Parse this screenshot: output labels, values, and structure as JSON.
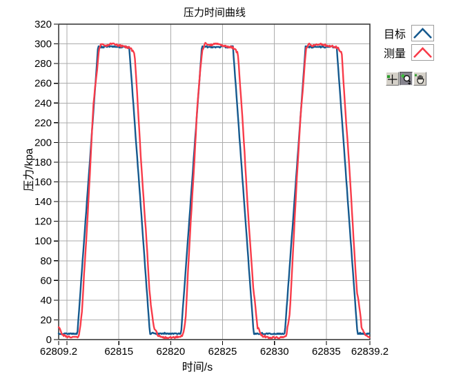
{
  "chart_data": {
    "type": "line",
    "title": "压力时间曲线",
    "xlabel": "时间/s",
    "ylabel": "压力/kpa",
    "xlim": [
      62809.2,
      62839.2
    ],
    "ylim": [
      0,
      320
    ],
    "grid": true,
    "grid_color": "#ABABAB",
    "border_color": "#3A3A3A",
    "background": "#FFFFFF",
    "x_ticks": [
      {
        "t": 62809.2,
        "label": "62809.2"
      },
      {
        "t": 62810,
        "label": ""
      },
      {
        "t": 62815,
        "label": "62815"
      },
      {
        "t": 62820,
        "label": "62820"
      },
      {
        "t": 62825,
        "label": "62825"
      },
      {
        "t": 62830,
        "label": "62830"
      },
      {
        "t": 62835,
        "label": "62835"
      },
      {
        "t": 62839.2,
        "label": "62839.2"
      }
    ],
    "grid_x": [
      62810,
      62815,
      62820,
      62825,
      62830,
      62835
    ],
    "y_ticks": {
      "min": 0,
      "max": 320,
      "step": 20
    },
    "legend_position": "top-right-outside",
    "sample_interval": 0.07,
    "series": [
      {
        "id": "target",
        "name": "目标",
        "color": "#15598E",
        "line_width": 2.4,
        "noise": 0.7,
        "ramp_wiggle": 0,
        "keypoints": [
          [
            62809.2,
            6
          ],
          [
            62811.0,
            6
          ],
          [
            62813.0,
            297
          ],
          [
            62816.0,
            297
          ],
          [
            62818.0,
            6
          ],
          [
            62821.0,
            6
          ],
          [
            62823.0,
            297
          ],
          [
            62826.0,
            297
          ],
          [
            62828.0,
            6
          ],
          [
            62831.0,
            6
          ],
          [
            62833.0,
            297
          ],
          [
            62836.0,
            297
          ],
          [
            62838.0,
            6
          ],
          [
            62839.2,
            6
          ]
        ]
      },
      {
        "id": "measure",
        "name": "测量",
        "color": "#F83B49",
        "line_width": 2.4,
        "noise": 1.0,
        "ramp_wiggle": 3.2,
        "keypoints": [
          [
            62809.2,
            13
          ],
          [
            62809.55,
            5
          ],
          [
            62810.1,
            2.3
          ],
          [
            62810.75,
            2.4
          ],
          [
            62811.15,
            3.5
          ],
          [
            62811.45,
            25
          ],
          [
            62812.55,
            235
          ],
          [
            62813.05,
            293
          ],
          [
            62813.3,
            301
          ],
          [
            62813.6,
            298
          ],
          [
            62814.3,
            300
          ],
          [
            62815.1,
            298
          ],
          [
            62816.1,
            296
          ],
          [
            62816.5,
            290
          ],
          [
            62817.2,
            175
          ],
          [
            62817.95,
            50
          ],
          [
            62818.4,
            12
          ],
          [
            62818.8,
            4
          ],
          [
            62819.4,
            2.2
          ],
          [
            62820.1,
            1.8
          ],
          [
            62820.75,
            2.4
          ],
          [
            62821.15,
            3.5
          ],
          [
            62821.45,
            25
          ],
          [
            62822.55,
            235
          ],
          [
            62823.05,
            293
          ],
          [
            62823.3,
            301
          ],
          [
            62823.6,
            298
          ],
          [
            62824.3,
            300
          ],
          [
            62825.1,
            298
          ],
          [
            62826.1,
            296
          ],
          [
            62826.5,
            290
          ],
          [
            62827.2,
            175
          ],
          [
            62827.95,
            50
          ],
          [
            62828.4,
            12
          ],
          [
            62828.8,
            4
          ],
          [
            62829.4,
            2.2
          ],
          [
            62830.1,
            1.8
          ],
          [
            62830.75,
            2.4
          ],
          [
            62831.15,
            3.5
          ],
          [
            62831.45,
            25
          ],
          [
            62832.55,
            235
          ],
          [
            62833.05,
            293
          ],
          [
            62833.3,
            301
          ],
          [
            62833.6,
            298
          ],
          [
            62834.3,
            300
          ],
          [
            62835.1,
            298
          ],
          [
            62836.1,
            296
          ],
          [
            62836.5,
            290
          ],
          [
            62837.2,
            175
          ],
          [
            62837.95,
            50
          ],
          [
            62838.4,
            12
          ],
          [
            62838.8,
            4
          ],
          [
            62839.2,
            3.2
          ]
        ]
      }
    ]
  },
  "legend": {
    "items": [
      {
        "label": "目标",
        "color": "#15598E",
        "icon": "target-line-icon"
      },
      {
        "label": "测量",
        "color": "#F83B49",
        "icon": "measure-line-icon"
      }
    ]
  },
  "toolbar": {
    "buttons": [
      {
        "name": "cursor-tool",
        "icon": "crosshair-icon",
        "selected": false
      },
      {
        "name": "zoom-tool",
        "icon": "magnifier-icon",
        "selected": true
      },
      {
        "name": "pan-tool",
        "icon": "hand-icon",
        "selected": false
      }
    ]
  }
}
